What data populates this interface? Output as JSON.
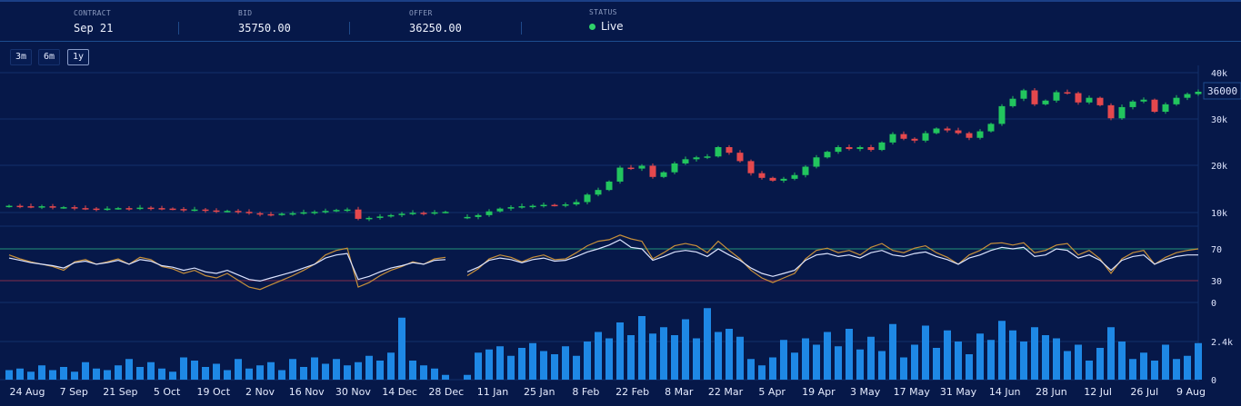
{
  "header": {
    "contract_label": "CONTRACT",
    "contract_value": "Sep 21",
    "bid_label": "BID",
    "bid_value": "35750.00",
    "offer_label": "OFFER",
    "offer_value": "36250.00",
    "status_label": "STATUS",
    "status_value": "Live"
  },
  "ranges": [
    {
      "label": "3m"
    },
    {
      "label": "6m"
    },
    {
      "label": "1y",
      "active": true
    }
  ],
  "colors": {
    "background": "#061849",
    "up": "#22c55e",
    "down": "#e5484d",
    "rsi": "#dde4ff",
    "rsi_fast": "#c8903a",
    "overbought": "#1f7a6e",
    "oversold": "#6b2a4c",
    "volume": "#1e88e5",
    "live": "#2fd36a"
  },
  "price_axis": {
    "ticks": [
      "40k",
      "30k",
      "20k",
      "10k"
    ],
    "last_price": "36000"
  },
  "rsi_axis": {
    "ticks": [
      "70",
      "30",
      "0"
    ]
  },
  "volume_axis": {
    "ticks": [
      "2.4k",
      "0"
    ]
  },
  "chart_data": {
    "type": "candlestick",
    "x_labels": [
      "24 Aug",
      "7 Sep",
      "21 Sep",
      "5 Oct",
      "19 Oct",
      "2 Nov",
      "16 Nov",
      "30 Nov",
      "14 Dec",
      "28 Dec",
      "11 Jan",
      "25 Jan",
      "8 Feb",
      "22 Feb",
      "8 Mar",
      "22 Mar",
      "5 Apr",
      "19 Apr",
      "3 May",
      "17 May",
      "31 May",
      "14 Jun",
      "28 Jun",
      "12 Jul",
      "26 Jul",
      "9 Aug"
    ],
    "price_range_k": [
      0,
      40
    ],
    "close_k": [
      11.4,
      11.3,
      11.2,
      11.3,
      11.0,
      11.1,
      10.9,
      10.8,
      10.7,
      10.8,
      10.9,
      10.8,
      11.0,
      10.9,
      10.8,
      10.7,
      10.5,
      10.6,
      10.4,
      10.2,
      10.3,
      10.1,
      9.8,
      9.6,
      9.5,
      9.7,
      9.8,
      10.0,
      10.1,
      10.3,
      10.5,
      10.6,
      8.6,
      8.8,
      9.1,
      9.4,
      9.7,
      9.9,
      9.8,
      10.0,
      10.1,
      null,
      9.0,
      9.4,
      10.2,
      10.8,
      11.1,
      11.3,
      11.4,
      11.6,
      11.5,
      11.7,
      12.2,
      13.8,
      14.8,
      16.6,
      19.6,
      19.4,
      20.0,
      17.6,
      18.6,
      20.5,
      21.4,
      21.8,
      22.0,
      24.0,
      22.8,
      21.0,
      18.4,
      17.4,
      16.8,
      17.2,
      18.0,
      19.8,
      21.8,
      23.0,
      24.0,
      23.6,
      24.0,
      23.4,
      25.0,
      26.8,
      25.8,
      25.4,
      27.0,
      28.0,
      27.6,
      27.0,
      26.0,
      27.4,
      29.0,
      32.8,
      34.4,
      36.2,
      33.2,
      34.0,
      35.8,
      35.6,
      33.6,
      34.6,
      33.0,
      30.2,
      32.6,
      33.8,
      34.2,
      31.6,
      33.2,
      34.6,
      35.4,
      35.9
    ],
    "rsi": [
      58,
      55,
      52,
      50,
      48,
      45,
      52,
      54,
      50,
      52,
      55,
      50,
      56,
      54,
      48,
      46,
      42,
      45,
      40,
      38,
      42,
      36,
      30,
      28,
      32,
      36,
      40,
      45,
      50,
      58,
      62,
      64,
      30,
      34,
      40,
      45,
      48,
      52,
      50,
      55,
      56,
      null,
      40,
      46,
      55,
      58,
      56,
      52,
      56,
      58,
      54,
      55,
      60,
      66,
      70,
      75,
      82,
      72,
      70,
      55,
      60,
      66,
      68,
      66,
      60,
      70,
      62,
      55,
      45,
      38,
      34,
      38,
      42,
      55,
      62,
      64,
      60,
      62,
      58,
      65,
      68,
      62,
      60,
      64,
      66,
      60,
      56,
      50,
      58,
      62,
      68,
      72,
      70,
      72,
      60,
      62,
      70,
      68,
      58,
      62,
      55,
      42,
      55,
      60,
      62,
      50,
      56,
      60,
      62,
      62
    ],
    "rsi_fast": [
      62,
      57,
      53,
      50,
      47,
      42,
      53,
      56,
      50,
      53,
      57,
      50,
      59,
      56,
      47,
      44,
      38,
      42,
      35,
      32,
      38,
      29,
      20,
      17,
      23,
      29,
      35,
      42,
      50,
      62,
      68,
      71,
      20,
      26,
      35,
      42,
      47,
      53,
      50,
      57,
      59,
      null,
      35,
      44,
      57,
      62,
      59,
      53,
      59,
      62,
      56,
      57,
      65,
      74,
      80,
      82,
      88,
      83,
      80,
      57,
      65,
      74,
      77,
      74,
      65,
      80,
      68,
      57,
      42,
      32,
      26,
      32,
      38,
      57,
      68,
      71,
      65,
      68,
      62,
      72,
      77,
      68,
      65,
      71,
      74,
      65,
      59,
      50,
      62,
      68,
      77,
      78,
      75,
      78,
      65,
      68,
      75,
      77,
      62,
      68,
      57,
      38,
      57,
      65,
      68,
      50,
      59,
      65,
      68,
      70
    ],
    "rsi_levels": [
      70,
      30
    ],
    "volume": [
      600,
      700,
      500,
      900,
      600,
      800,
      500,
      1100,
      700,
      600,
      900,
      1300,
      800,
      1100,
      700,
      500,
      1400,
      1200,
      800,
      1000,
      600,
      1300,
      700,
      900,
      1100,
      600,
      1300,
      800,
      1400,
      1000,
      1300,
      900,
      1100,
      1500,
      1200,
      1700,
      3900,
      1200,
      900,
      700,
      300,
      0,
      300,
      1700,
      1900,
      2100,
      1500,
      2000,
      2300,
      1800,
      1600,
      2100,
      1500,
      2400,
      3000,
      2600,
      3600,
      2800,
      4000,
      2900,
      3300,
      2800,
      3800,
      2600,
      4500,
      3000,
      3200,
      2700,
      1300,
      900,
      1400,
      2500,
      1700,
      2600,
      2200,
      3000,
      2100,
      3200,
      1900,
      2700,
      1800,
      3500,
      1400,
      2200,
      3400,
      2000,
      3100,
      2400,
      1600,
      2900,
      2500,
      3700,
      3100,
      2400,
      3300,
      2800,
      2600,
      1800,
      2200,
      1200,
      2000,
      3300,
      2400,
      1300,
      1700,
      1200,
      2200,
      1300,
      1500,
      2300
    ]
  }
}
